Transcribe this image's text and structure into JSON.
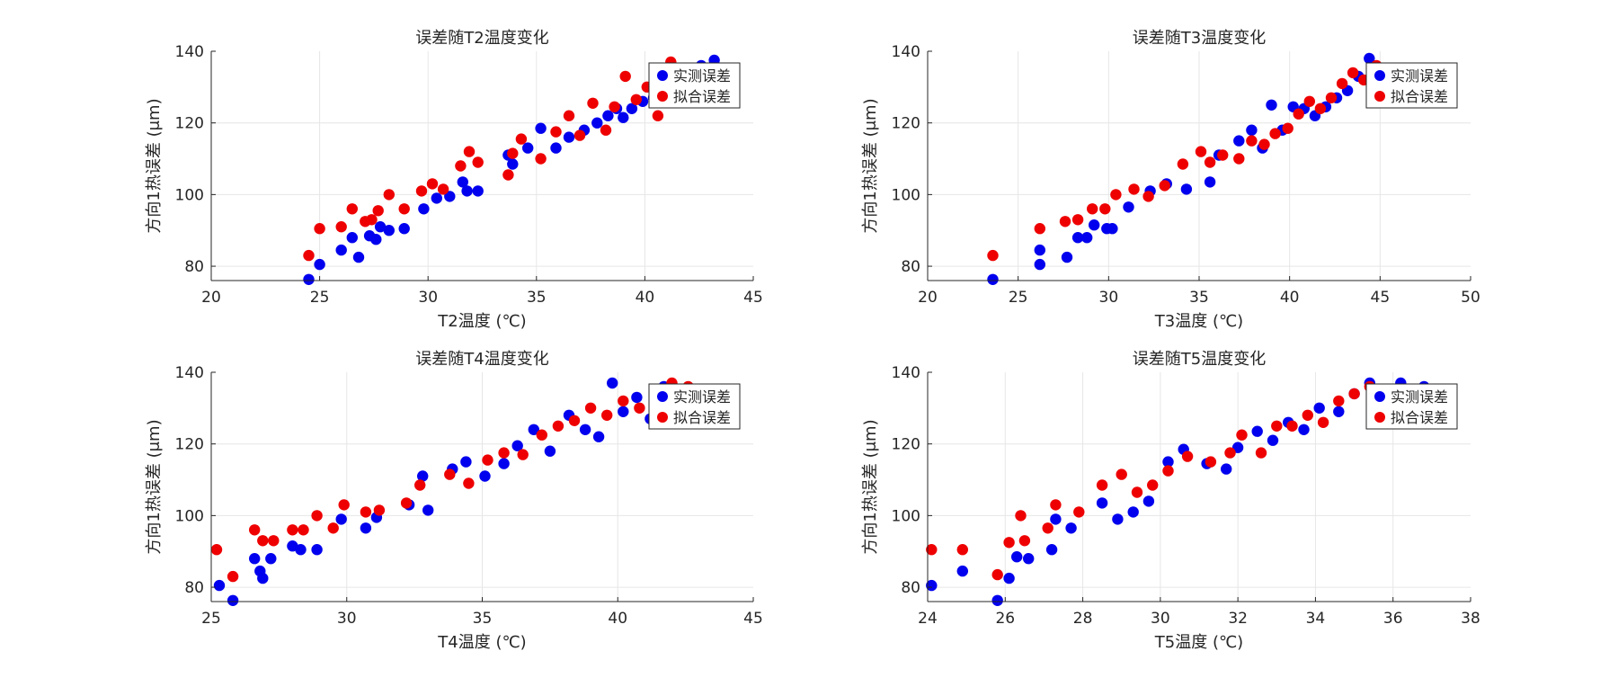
{
  "chart_data": [
    {
      "type": "scatter",
      "title": "误差随T2温度变化",
      "xlabel": "T2温度 (℃)",
      "ylabel": "方向1热误差 (μm)",
      "xlim": [
        20,
        45
      ],
      "ylim": [
        76,
        140
      ],
      "xticks": [
        20,
        25,
        30,
        35,
        40,
        45
      ],
      "yticks": [
        80,
        100,
        120,
        140
      ],
      "grid": true,
      "legend_position": "top-right",
      "series": [
        {
          "name": "实测误差",
          "color": "#0000ee",
          "x": [
            24.5,
            25,
            26,
            26.5,
            26.8,
            27.3,
            27.6,
            27.8,
            28.2,
            28.9,
            29.8,
            30.4,
            31,
            31.6,
            31.8,
            32.3,
            33.7,
            33.9,
            34.6,
            35.2,
            35.9,
            36.5,
            37.2,
            37.8,
            38.3,
            38.7,
            39,
            39.4,
            39.9,
            40.4,
            40.8,
            41.4,
            41.9,
            42.6,
            43.2
          ],
          "y": [
            76.3,
            80.5,
            84.5,
            88,
            82.5,
            88.5,
            87.5,
            91,
            90,
            90.5,
            96,
            99,
            99.5,
            103.5,
            101,
            101,
            111,
            108.5,
            113,
            118.5,
            113,
            116,
            118,
            120,
            122,
            124,
            121.5,
            124,
            126,
            127,
            129,
            132,
            134,
            136,
            137.5
          ]
        },
        {
          "name": "拟合误差",
          "color": "#ee0000",
          "x": [
            24.5,
            25,
            26,
            26.5,
            27.1,
            27.4,
            27.7,
            28.2,
            28.9,
            29.7,
            30.2,
            30.7,
            31.5,
            31.9,
            32.3,
            33.7,
            33.9,
            34.3,
            35.2,
            35.9,
            36.5,
            37,
            37.6,
            38.2,
            38.6,
            39.1,
            39.6,
            40.1,
            40.6,
            41.2,
            41.8,
            42.3
          ],
          "y": [
            83,
            90.5,
            91,
            96,
            92.5,
            93,
            95.5,
            100,
            96,
            101,
            103,
            101.5,
            108,
            112,
            109,
            105.5,
            111.5,
            115.5,
            110,
            117.5,
            122,
            116.5,
            125.5,
            118,
            124.5,
            133,
            126.5,
            130,
            122,
            137,
            128,
            131
          ]
        }
      ]
    },
    {
      "type": "scatter",
      "title": "误差随T3温度变化",
      "xlabel": "T3温度 (℃)",
      "ylabel": "方向1热误差 (μm)",
      "xlim": [
        20,
        50
      ],
      "ylim": [
        76,
        140
      ],
      "xticks": [
        20,
        25,
        30,
        35,
        40,
        45,
        50
      ],
      "yticks": [
        80,
        100,
        120,
        140
      ],
      "grid": true,
      "legend_position": "top-right",
      "series": [
        {
          "name": "实测误差",
          "color": "#0000ee",
          "x": [
            23.6,
            26.2,
            26.2,
            27.7,
            28.3,
            28.8,
            29.2,
            29.9,
            30.2,
            31.1,
            32.3,
            33.2,
            34.3,
            35.6,
            36.1,
            37.2,
            37.9,
            38.5,
            39,
            39.6,
            40.2,
            40.8,
            41.4,
            42,
            42.6,
            43.2,
            43.8,
            44.4,
            45
          ],
          "y": [
            76.3,
            80.5,
            84.5,
            82.5,
            88,
            88,
            91.5,
            90.5,
            90.5,
            96.5,
            101,
            103,
            101.5,
            103.5,
            111,
            115,
            118,
            113,
            125,
            118,
            124.5,
            124,
            122,
            124.5,
            127,
            129,
            133,
            138,
            134
          ]
        },
        {
          "name": "拟合误差",
          "color": "#ee0000",
          "x": [
            23.6,
            26.2,
            27.6,
            28.3,
            29.1,
            29.8,
            30.4,
            31.4,
            32.2,
            33.1,
            34.1,
            35.1,
            35.6,
            36.3,
            37.2,
            37.9,
            38.6,
            39.2,
            39.9,
            40.5,
            41.1,
            41.7,
            42.3,
            42.9,
            43.5,
            44.1,
            44.8,
            45.4
          ],
          "y": [
            83,
            90.5,
            92.5,
            93,
            96,
            96,
            100,
            101.5,
            99.5,
            102.5,
            108.5,
            112,
            109,
            111,
            110,
            115,
            114,
            117,
            118.5,
            122.5,
            126,
            124,
            127,
            131,
            134,
            132,
            136,
            134
          ]
        }
      ]
    },
    {
      "type": "scatter",
      "title": "误差随T4温度变化",
      "xlabel": "T4温度 (℃)",
      "ylabel": "方向1热误差 (μm)",
      "xlim": [
        25,
        45
      ],
      "ylim": [
        76,
        140
      ],
      "xticks": [
        25,
        30,
        35,
        40,
        45
      ],
      "yticks": [
        80,
        100,
        120,
        140
      ],
      "grid": true,
      "legend_position": "top-right",
      "series": [
        {
          "name": "实测误差",
          "color": "#0000ee",
          "x": [
            25.3,
            25.8,
            26.6,
            26.8,
            26.9,
            27.2,
            28,
            28.3,
            28.9,
            29.8,
            30.7,
            31.1,
            32.3,
            33,
            32.8,
            33.9,
            34.4,
            35.1,
            35.8,
            36.3,
            36.9,
            37.5,
            38.2,
            38.8,
            39.3,
            39.8,
            40.2,
            40.7,
            41.2,
            41.7,
            42.1
          ],
          "y": [
            80.5,
            76.3,
            88,
            84.5,
            82.5,
            88,
            91.5,
            90.5,
            90.5,
            99,
            96.5,
            99.5,
            103,
            101.5,
            111,
            113,
            115,
            111,
            114.5,
            119.5,
            124,
            118,
            128,
            124,
            122,
            137,
            129,
            133,
            127,
            136,
            134
          ]
        },
        {
          "name": "拟合误差",
          "color": "#ee0000",
          "x": [
            25.2,
            25.8,
            26.6,
            26.9,
            27.3,
            28,
            28.4,
            28.9,
            29.5,
            29.9,
            30.7,
            31.2,
            32.2,
            32.7,
            33.8,
            34.5,
            35.2,
            35.8,
            36.5,
            37.2,
            37.8,
            38.4,
            39,
            39.6,
            40.2,
            40.8,
            41.4,
            42,
            42.6
          ],
          "y": [
            90.5,
            83,
            96,
            93,
            93,
            96,
            96,
            100,
            96.5,
            103,
            101,
            101.5,
            103.5,
            108.5,
            111.5,
            109,
            115.5,
            117.5,
            117,
            122.5,
            125,
            126.5,
            130,
            128,
            132,
            130,
            134,
            137,
            136
          ]
        }
      ]
    },
    {
      "type": "scatter",
      "title": "误差随T5温度变化",
      "xlabel": "T5温度 (℃)",
      "ylabel": "方向1热误差 (μm)",
      "xlim": [
        24,
        38
      ],
      "ylim": [
        76,
        140
      ],
      "xticks": [
        24,
        26,
        28,
        30,
        32,
        34,
        36,
        38
      ],
      "yticks": [
        80,
        100,
        120,
        140
      ],
      "grid": true,
      "legend_position": "top-right",
      "series": [
        {
          "name": "实测误差",
          "color": "#0000ee",
          "x": [
            24.1,
            24.9,
            25.8,
            26.1,
            26.3,
            26.6,
            27.2,
            27.3,
            27.7,
            28.5,
            28.9,
            29.3,
            29.7,
            30.2,
            30.6,
            31.2,
            31.7,
            32,
            32.5,
            32.9,
            33.3,
            33.7,
            34.1,
            34.6,
            35,
            35.4,
            35.8,
            36.2,
            36.8
          ],
          "y": [
            80.5,
            84.5,
            76.3,
            82.5,
            88.5,
            88,
            90.5,
            99,
            96.5,
            103.5,
            99,
            101,
            104,
            115,
            118.5,
            114.5,
            113,
            119,
            123.5,
            121,
            126,
            124,
            130,
            129,
            134,
            137,
            133,
            137,
            136
          ]
        },
        {
          "name": "拟合误差",
          "color": "#ee0000",
          "x": [
            24.1,
            24.9,
            25.8,
            26.1,
            26.4,
            26.5,
            27.1,
            27.3,
            27.9,
            28.5,
            29,
            29.4,
            29.8,
            30.2,
            30.7,
            31.3,
            31.8,
            32.1,
            32.6,
            33,
            33.4,
            33.8,
            34.2,
            34.6,
            35,
            35.4,
            35.8,
            36.2
          ],
          "y": [
            90.5,
            90.5,
            83.5,
            92.5,
            100,
            93,
            96.5,
            103,
            101,
            108.5,
            111.5,
            106.5,
            108.5,
            112.5,
            116.5,
            115,
            117.5,
            122.5,
            117.5,
            125,
            125,
            128,
            126,
            132,
            134,
            136,
            131,
            135
          ]
        }
      ]
    }
  ]
}
